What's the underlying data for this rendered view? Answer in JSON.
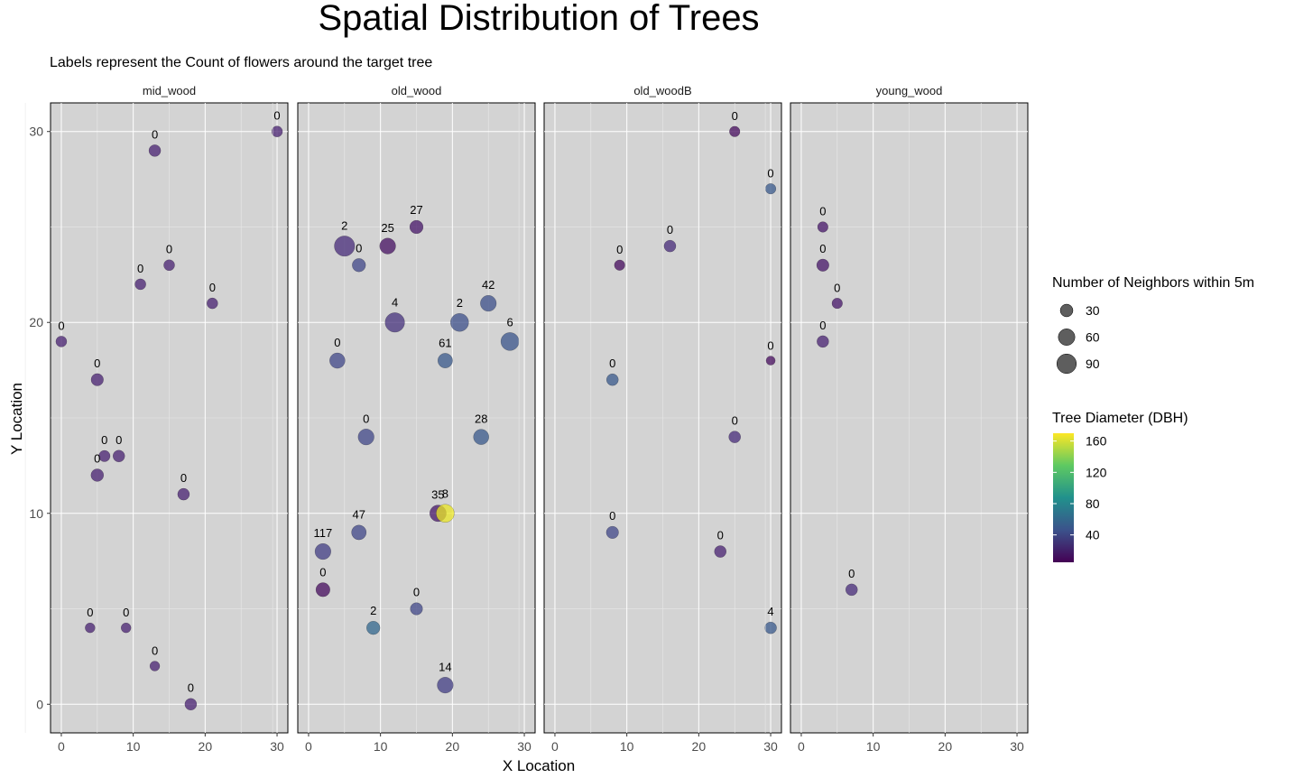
{
  "title": "Spatial Distribution of Trees",
  "subtitle": "Labels represent the Count of flowers around the target tree",
  "chart_data": {
    "type": "scatter",
    "xlabel": "X Location",
    "ylabel": "Y Location",
    "xlim": [
      -1.5,
      31.5
    ],
    "ylim": [
      -1.5,
      31.5
    ],
    "x_ticks": [
      0,
      10,
      20,
      30
    ],
    "y_ticks": [
      0,
      10,
      20,
      30
    ],
    "grid": true,
    "panels": [
      {
        "name": "mid_wood",
        "points": [
          {
            "x": 30,
            "y": 30,
            "dbh": 20,
            "neighbors": 20,
            "label": "0"
          },
          {
            "x": 13,
            "y": 29,
            "dbh": 20,
            "neighbors": 25,
            "label": "0"
          },
          {
            "x": 15,
            "y": 23,
            "dbh": 20,
            "neighbors": 20,
            "label": "0"
          },
          {
            "x": 11,
            "y": 22,
            "dbh": 20,
            "neighbors": 20,
            "label": "0"
          },
          {
            "x": 21,
            "y": 21,
            "dbh": 20,
            "neighbors": 20,
            "label": "0"
          },
          {
            "x": 0,
            "y": 19,
            "dbh": 20,
            "neighbors": 20,
            "label": "0"
          },
          {
            "x": 5,
            "y": 17,
            "dbh": 20,
            "neighbors": 28,
            "label": "0"
          },
          {
            "x": 6,
            "y": 13,
            "dbh": 20,
            "neighbors": 22,
            "label": "0"
          },
          {
            "x": 8,
            "y": 13,
            "dbh": 20,
            "neighbors": 25,
            "label": "0"
          },
          {
            "x": 5,
            "y": 12,
            "dbh": 20,
            "neighbors": 30,
            "label": "0"
          },
          {
            "x": 17,
            "y": 11,
            "dbh": 20,
            "neighbors": 25,
            "label": "0"
          },
          {
            "x": 4,
            "y": 4,
            "dbh": 20,
            "neighbors": 15,
            "label": "0"
          },
          {
            "x": 9,
            "y": 4,
            "dbh": 20,
            "neighbors": 15,
            "label": "0"
          },
          {
            "x": 13,
            "y": 2,
            "dbh": 20,
            "neighbors": 15,
            "label": "0"
          },
          {
            "x": 18,
            "y": 0,
            "dbh": 20,
            "neighbors": 25,
            "label": "0"
          }
        ]
      },
      {
        "name": "old_wood",
        "points": [
          {
            "x": 5,
            "y": 24,
            "dbh": 25,
            "neighbors": 100,
            "label": "2"
          },
          {
            "x": 11,
            "y": 24,
            "dbh": 12,
            "neighbors": 55,
            "label": "25"
          },
          {
            "x": 15,
            "y": 25,
            "dbh": 15,
            "neighbors": 35,
            "label": "27"
          },
          {
            "x": 7,
            "y": 23,
            "dbh": 40,
            "neighbors": 35,
            "label": "0"
          },
          {
            "x": 12,
            "y": 20,
            "dbh": 28,
            "neighbors": 90,
            "label": "4"
          },
          {
            "x": 21,
            "y": 20,
            "dbh": 45,
            "neighbors": 75,
            "label": "2"
          },
          {
            "x": 25,
            "y": 21,
            "dbh": 45,
            "neighbors": 55,
            "label": "42"
          },
          {
            "x": 28,
            "y": 19,
            "dbh": 48,
            "neighbors": 75,
            "label": "6"
          },
          {
            "x": 4,
            "y": 18,
            "dbh": 40,
            "neighbors": 50,
            "label": "0"
          },
          {
            "x": 19,
            "y": 18,
            "dbh": 50,
            "neighbors": 45,
            "label": "61"
          },
          {
            "x": 8,
            "y": 14,
            "dbh": 40,
            "neighbors": 55,
            "label": "0"
          },
          {
            "x": 24,
            "y": 14,
            "dbh": 50,
            "neighbors": 50,
            "label": "28"
          },
          {
            "x": 18,
            "y": 10,
            "dbh": 15,
            "neighbors": 60,
            "label": "35"
          },
          {
            "x": 19,
            "y": 10,
            "dbh": 165,
            "neighbors": 75,
            "label": "8"
          },
          {
            "x": 7,
            "y": 9,
            "dbh": 40,
            "neighbors": 45,
            "label": "47"
          },
          {
            "x": 2,
            "y": 8,
            "dbh": 35,
            "neighbors": 55,
            "label": "117"
          },
          {
            "x": 2,
            "y": 6,
            "dbh": 10,
            "neighbors": 40,
            "label": "0"
          },
          {
            "x": 15,
            "y": 5,
            "dbh": 40,
            "neighbors": 28,
            "label": "0"
          },
          {
            "x": 9,
            "y": 4,
            "dbh": 60,
            "neighbors": 35,
            "label": "2"
          },
          {
            "x": 19,
            "y": 1,
            "dbh": 35,
            "neighbors": 55,
            "label": "14"
          }
        ]
      },
      {
        "name": "old_woodB",
        "points": [
          {
            "x": 25,
            "y": 30,
            "dbh": 10,
            "neighbors": 18,
            "label": "0"
          },
          {
            "x": 30,
            "y": 27,
            "dbh": 50,
            "neighbors": 18,
            "label": "0"
          },
          {
            "x": 16,
            "y": 24,
            "dbh": 25,
            "neighbors": 25,
            "label": "0"
          },
          {
            "x": 9,
            "y": 23,
            "dbh": 10,
            "neighbors": 18,
            "label": "0"
          },
          {
            "x": 30,
            "y": 18,
            "dbh": 10,
            "neighbors": 12,
            "label": "0"
          },
          {
            "x": 8,
            "y": 17,
            "dbh": 50,
            "neighbors": 25,
            "label": "0"
          },
          {
            "x": 25,
            "y": 14,
            "dbh": 25,
            "neighbors": 25,
            "label": "0"
          },
          {
            "x": 8,
            "y": 9,
            "dbh": 40,
            "neighbors": 28,
            "label": "0"
          },
          {
            "x": 23,
            "y": 8,
            "dbh": 20,
            "neighbors": 25,
            "label": "0"
          },
          {
            "x": 30,
            "y": 4,
            "dbh": 50,
            "neighbors": 25,
            "label": "4"
          }
        ]
      },
      {
        "name": "young_wood",
        "points": [
          {
            "x": 3,
            "y": 25,
            "dbh": 15,
            "neighbors": 18,
            "label": "0"
          },
          {
            "x": 3,
            "y": 23,
            "dbh": 15,
            "neighbors": 28,
            "label": "0"
          },
          {
            "x": 5,
            "y": 21,
            "dbh": 15,
            "neighbors": 18,
            "label": "0"
          },
          {
            "x": 3,
            "y": 19,
            "dbh": 20,
            "neighbors": 25,
            "label": "0"
          },
          {
            "x": 7,
            "y": 6,
            "dbh": 25,
            "neighbors": 25,
            "label": "0"
          }
        ]
      }
    ],
    "size_legend": {
      "title": "Number of Neighbors within 5m",
      "values": [
        30,
        60,
        90
      ]
    },
    "color_legend": {
      "title": "Tree Diameter (DBH)",
      "values": [
        40,
        80,
        120,
        160
      ],
      "min": 5,
      "max": 170
    }
  }
}
